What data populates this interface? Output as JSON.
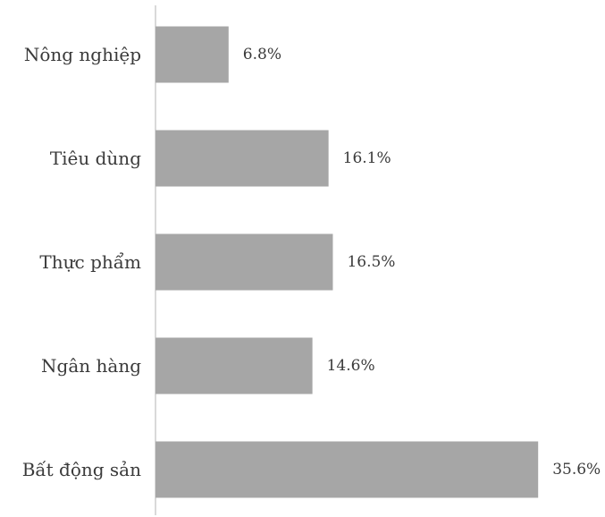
{
  "chart_data": {
    "type": "bar",
    "orientation": "horizontal",
    "categories": [
      "Nông nghiệp",
      "Tiêu dùng",
      "Thực phẩm",
      "Ngân hàng",
      "Bất động sản"
    ],
    "values": [
      6.8,
      16.1,
      16.5,
      14.6,
      35.6
    ],
    "value_labels": [
      "6.8%",
      "16.1%",
      "16.5%",
      "14.6%",
      "35.6%"
    ],
    "unit": "%",
    "xlim": [
      0,
      36
    ],
    "grid": false,
    "legend": "none",
    "bar_color": "#a6a6a6",
    "axis_color": "#d9d9d9"
  }
}
